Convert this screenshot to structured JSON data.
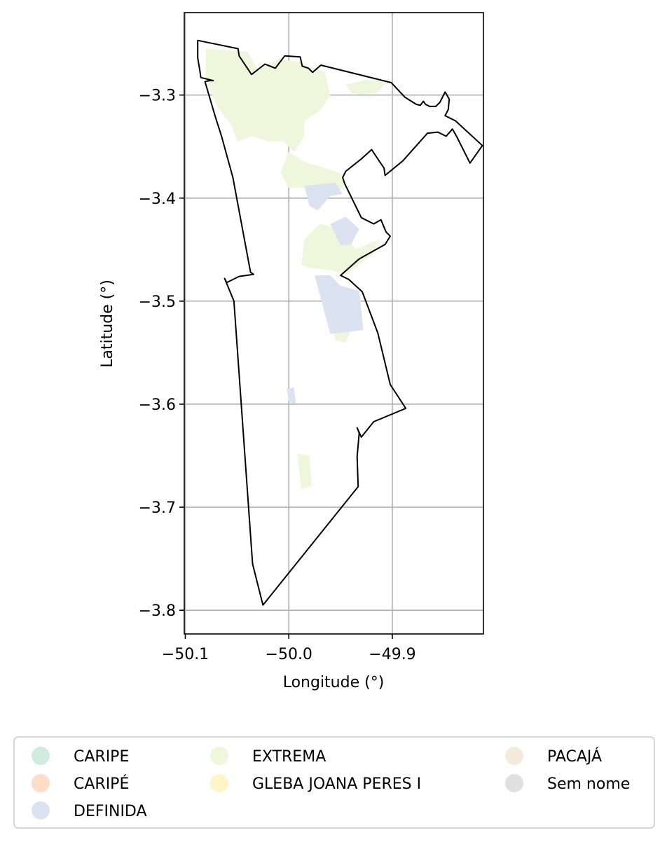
{
  "chart_data": {
    "type": "map",
    "xlabel": "Longitude (°)",
    "ylabel": "Latitude (°)",
    "xlim": [
      -50.101,
      -49.812
    ],
    "ylim": [
      -3.823,
      -3.22
    ],
    "grid": true,
    "x_ticks": [
      {
        "value": -50.1,
        "label": "−50.1"
      },
      {
        "value": -50.0,
        "label": "−50.0"
      },
      {
        "value": -49.9,
        "label": "−49.9"
      }
    ],
    "y_ticks": [
      {
        "value": -3.3,
        "label": "−3.3"
      },
      {
        "value": -3.4,
        "label": "−3.4"
      },
      {
        "value": -3.5,
        "label": "−3.5"
      },
      {
        "value": -3.6,
        "label": "−3.6"
      },
      {
        "value": -3.7,
        "label": "−3.7"
      },
      {
        "value": -3.8,
        "label": "−3.8"
      }
    ],
    "legend_placement": "bottom",
    "legend": [
      {
        "name": "CARIPE",
        "color": "#d0ece0"
      },
      {
        "name": "CARIPÉ",
        "color": "#fddcc8"
      },
      {
        "name": "DEFINIDA",
        "color": "#dce3f0"
      },
      {
        "name": "EXTREMA",
        "color": "#eef7dc"
      },
      {
        "name": "GLEBA JOANA PERES I",
        "color": "#fff5c8"
      },
      {
        "name": "PACAJÁ",
        "color": "#f5ebdc"
      },
      {
        "name": "Sem nome",
        "color": "#e0e0e0"
      }
    ],
    "boundary": [
      [
        -50.088,
        -3.247
      ],
      [
        -50.049,
        -3.255
      ],
      [
        -50.048,
        -3.262
      ],
      [
        -50.036,
        -3.28
      ],
      [
        -50.023,
        -3.27
      ],
      [
        -50.013,
        -3.274
      ],
      [
        -50.004,
        -3.262
      ],
      [
        -49.989,
        -3.263
      ],
      [
        -49.987,
        -3.272
      ],
      [
        -49.981,
        -3.274
      ],
      [
        -49.977,
        -3.278
      ],
      [
        -49.969,
        -3.271
      ],
      [
        -49.901,
        -3.288
      ],
      [
        -49.888,
        -3.302
      ],
      [
        -49.877,
        -3.309
      ],
      [
        -49.873,
        -3.31
      ],
      [
        -49.87,
        -3.306
      ],
      [
        -49.868,
        -3.309
      ],
      [
        -49.864,
        -3.311
      ],
      [
        -49.858,
        -3.311
      ],
      [
        -49.854,
        -3.307
      ],
      [
        -49.849,
        -3.297
      ],
      [
        -49.845,
        -3.304
      ],
      [
        -49.846,
        -3.314
      ],
      [
        -49.849,
        -3.32
      ],
      [
        -49.839,
        -3.325
      ],
      [
        -49.813,
        -3.349
      ],
      [
        -49.825,
        -3.366
      ],
      [
        -49.838,
        -3.34
      ],
      [
        -49.842,
        -3.333
      ],
      [
        -49.848,
        -3.34
      ],
      [
        -49.856,
        -3.336
      ],
      [
        -49.866,
        -3.337
      ],
      [
        -49.89,
        -3.364
      ],
      [
        -49.907,
        -3.378
      ],
      [
        -49.908,
        -3.371
      ],
      [
        -49.912,
        -3.365
      ],
      [
        -49.92,
        -3.353
      ],
      [
        -49.93,
        -3.362
      ],
      [
        -49.945,
        -3.374
      ],
      [
        -49.948,
        -3.38
      ],
      [
        -49.946,
        -3.386
      ],
      [
        -49.93,
        -3.419
      ],
      [
        -49.918,
        -3.425
      ],
      [
        -49.911,
        -3.421
      ],
      [
        -49.906,
        -3.433
      ],
      [
        -49.902,
        -3.437
      ],
      [
        -49.907,
        -3.445
      ],
      [
        -49.932,
        -3.459
      ],
      [
        -49.95,
        -3.475
      ],
      [
        -49.942,
        -3.479
      ],
      [
        -49.929,
        -3.491
      ],
      [
        -49.914,
        -3.531
      ],
      [
        -49.902,
        -3.581
      ],
      [
        -49.887,
        -3.604
      ],
      [
        -49.918,
        -3.617
      ],
      [
        -49.93,
        -3.632
      ],
      [
        -49.934,
        -3.623
      ],
      [
        -49.932,
        -3.628
      ],
      [
        -49.934,
        -3.651
      ],
      [
        -49.933,
        -3.68
      ],
      [
        -50.025,
        -3.795
      ],
      [
        -50.035,
        -3.755
      ],
      [
        -50.053,
        -3.5
      ],
      [
        -50.062,
        -3.478
      ],
      [
        -50.06,
        -3.482
      ],
      [
        -50.048,
        -3.476
      ],
      [
        -50.034,
        -3.474
      ],
      [
        -50.037,
        -3.472
      ],
      [
        -50.054,
        -3.38
      ],
      [
        -50.065,
        -3.34
      ],
      [
        -50.071,
        -3.321
      ],
      [
        -50.081,
        -3.287
      ],
      [
        -50.077,
        -3.286
      ],
      [
        -50.073,
        -3.286
      ],
      [
        -50.085,
        -3.283
      ],
      [
        -50.086,
        -3.276
      ],
      [
        -50.088,
        -3.264
      ]
    ],
    "regions": [
      {
        "name": "EXTREMA",
        "polygon": [
          [
            -50.08,
            -3.255
          ],
          [
            -50.04,
            -3.258
          ],
          [
            -50.03,
            -3.275
          ],
          [
            -50.01,
            -3.265
          ],
          [
            -49.99,
            -3.268
          ],
          [
            -49.965,
            -3.278
          ],
          [
            -49.96,
            -3.3
          ],
          [
            -49.97,
            -3.315
          ],
          [
            -49.985,
            -3.325
          ],
          [
            -49.985,
            -3.34
          ],
          [
            -49.995,
            -3.355
          ],
          [
            -50.005,
            -3.345
          ],
          [
            -50.02,
            -3.345
          ],
          [
            -50.035,
            -3.34
          ],
          [
            -50.05,
            -3.345
          ],
          [
            -50.055,
            -3.33
          ],
          [
            -50.07,
            -3.31
          ],
          [
            -50.08,
            -3.285
          ]
        ]
      },
      {
        "name": "EXTREMA",
        "polygon": [
          [
            -49.945,
            -3.29
          ],
          [
            -49.925,
            -3.285
          ],
          [
            -49.905,
            -3.288
          ],
          [
            -49.915,
            -3.298
          ],
          [
            -49.938,
            -3.3
          ]
        ]
      },
      {
        "name": "EXTREMA",
        "polygon": [
          [
            -50.0,
            -3.355
          ],
          [
            -49.985,
            -3.365
          ],
          [
            -49.968,
            -3.37
          ],
          [
            -49.95,
            -3.376
          ],
          [
            -49.945,
            -3.385
          ],
          [
            -49.955,
            -3.398
          ],
          [
            -49.98,
            -3.39
          ],
          [
            -50.0,
            -3.39
          ],
          [
            -50.008,
            -3.375
          ]
        ]
      },
      {
        "name": "EXTREMA",
        "polygon": [
          [
            -49.985,
            -3.44
          ],
          [
            -49.97,
            -3.425
          ],
          [
            -49.95,
            -3.43
          ],
          [
            -49.935,
            -3.45
          ],
          [
            -49.925,
            -3.445
          ],
          [
            -49.912,
            -3.44
          ],
          [
            -49.92,
            -3.455
          ],
          [
            -49.945,
            -3.475
          ],
          [
            -49.958,
            -3.47
          ],
          [
            -49.978,
            -3.468
          ],
          [
            -49.988,
            -3.465
          ]
        ]
      },
      {
        "name": "EXTREMA",
        "polygon": [
          [
            -49.958,
            -3.525
          ],
          [
            -49.94,
            -3.528
          ],
          [
            -49.945,
            -3.54
          ],
          [
            -49.955,
            -3.538
          ]
        ]
      },
      {
        "name": "EXTREMA",
        "polygon": [
          [
            -49.992,
            -3.648
          ],
          [
            -49.98,
            -3.65
          ],
          [
            -49.978,
            -3.68
          ],
          [
            -49.988,
            -3.682
          ]
        ]
      },
      {
        "name": "DEFINIDA",
        "polygon": [
          [
            -49.985,
            -3.388
          ],
          [
            -49.955,
            -3.385
          ],
          [
            -49.948,
            -3.396
          ],
          [
            -49.96,
            -3.398
          ],
          [
            -49.972,
            -3.412
          ],
          [
            -49.98,
            -3.408
          ]
        ]
      },
      {
        "name": "DEFINIDA",
        "polygon": [
          [
            -49.96,
            -3.425
          ],
          [
            -49.945,
            -3.418
          ],
          [
            -49.932,
            -3.43
          ],
          [
            -49.94,
            -3.445
          ],
          [
            -49.95,
            -3.446
          ]
        ]
      },
      {
        "name": "DEFINIDA",
        "polygon": [
          [
            -49.975,
            -3.475
          ],
          [
            -49.96,
            -3.475
          ],
          [
            -49.95,
            -3.485
          ],
          [
            -49.932,
            -3.49
          ],
          [
            -49.928,
            -3.528
          ],
          [
            -49.96,
            -3.532
          ]
        ]
      },
      {
        "name": "DEFINIDA",
        "polygon": [
          [
            -50.002,
            -3.585
          ],
          [
            -49.995,
            -3.584
          ],
          [
            -49.993,
            -3.6
          ],
          [
            -50.0,
            -3.598
          ]
        ]
      }
    ]
  }
}
